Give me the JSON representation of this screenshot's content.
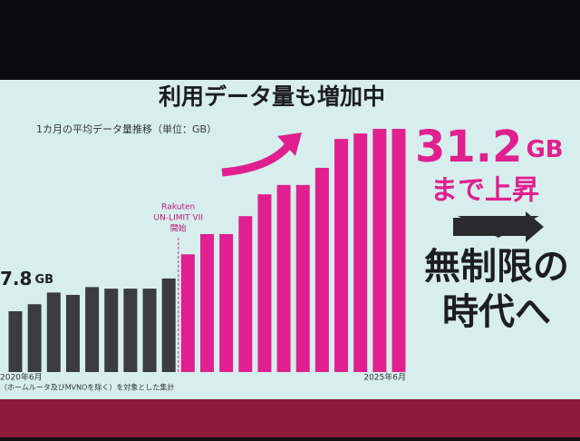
{
  "chart_data": {
    "type": "bar",
    "title": "利用データ量も増加中",
    "subtitle": "1カ月の平均データ量推移（単位：GB）",
    "categories": [
      "2020年6月",
      null,
      null,
      null,
      null,
      null,
      null,
      null,
      null,
      null,
      null,
      null,
      null,
      null,
      null,
      null,
      null,
      null,
      null,
      null,
      "2025年6月"
    ],
    "values": [
      7.8,
      8.7,
      10.2,
      9.9,
      10.9,
      10.7,
      10.7,
      10.7,
      12.0,
      15.1,
      17.7,
      17.7,
      20.0,
      22.8,
      24.0,
      24.0,
      26.2,
      29.9,
      30.6,
      31.2,
      31.2
    ],
    "colors": [
      "#3b3b40",
      "#3b3b40",
      "#3b3b40",
      "#3b3b40",
      "#3b3b40",
      "#3b3b40",
      "#3b3b40",
      "#3b3b40",
      "#3b3b40",
      "#e0208f",
      "#e0208f",
      "#e0208f",
      "#e0208f",
      "#e0208f",
      "#e0208f",
      "#e0208f",
      "#e0208f",
      "#e0208f",
      "#e0208f",
      "#e0208f",
      "#e0208f"
    ],
    "start_label": {
      "number": "7.8",
      "unit": "GB"
    },
    "peak_label": {
      "number": "31.2",
      "unit": "GB",
      "text": "まで上昇"
    },
    "event": {
      "lines": [
        "Rakuten",
        "UN-LIMIT VII",
        "開始"
      ],
      "index": 9
    },
    "headline": [
      "無制限の",
      "時代へ"
    ],
    "footnote": "（ホームルータ及びMVNOを除く）を対象とした集計"
  }
}
